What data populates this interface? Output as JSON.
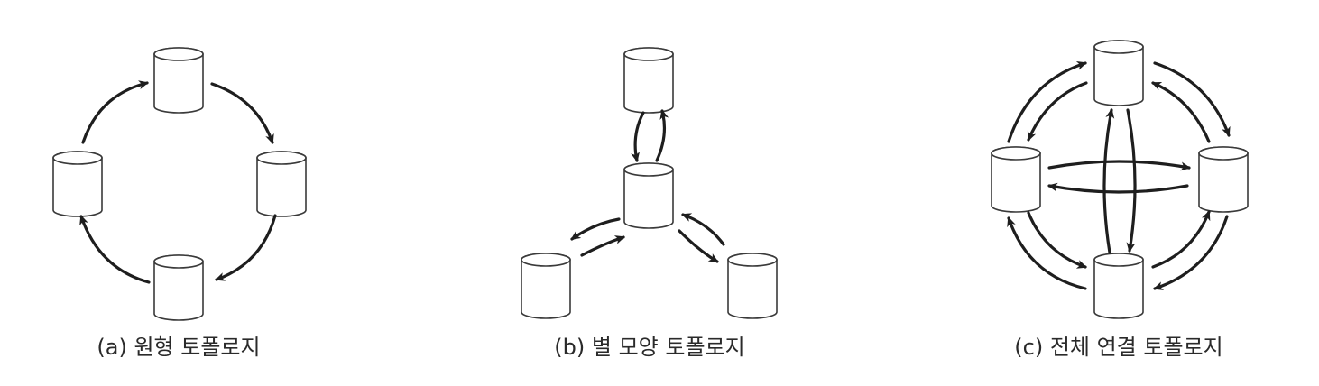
{
  "diagrams": [
    {
      "id": "a",
      "caption": "(a) 원형 토폴로지"
    },
    {
      "id": "b",
      "caption": "(b) 별 모양 토폴로지"
    },
    {
      "id": "c",
      "caption": "(c) 전체 연결 토폴로지"
    }
  ],
  "node_icon": "database-cylinder-icon",
  "colors": {
    "stroke": "#1e1e1e",
    "node_outline": "#3a3a3a",
    "background": "#ffffff"
  }
}
